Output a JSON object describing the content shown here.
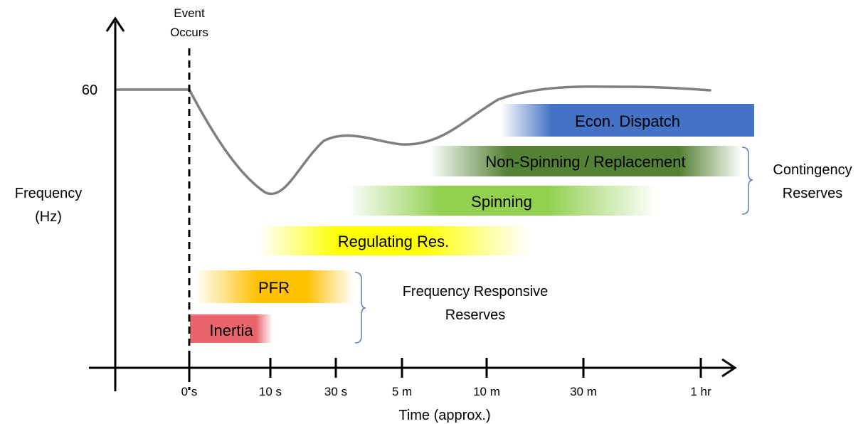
{
  "event_label": [
    "Event",
    "Occurs"
  ],
  "y_axis": {
    "label": [
      "Frequency",
      "(Hz)"
    ],
    "tick_value": "60"
  },
  "x_axis": {
    "label": "Time (approx.)",
    "ticks": [
      "0 s",
      "10 s",
      "30 s",
      "5 m",
      "10 m",
      "30 m",
      "1 hr"
    ]
  },
  "bands": [
    {
      "id": "econ-dispatch",
      "label": "Econ. Dispatch",
      "color": "#4472C4"
    },
    {
      "id": "non-spinning",
      "label": "Non-Spinning / Replacement",
      "color": "#548235"
    },
    {
      "id": "spinning",
      "label": "Spinning",
      "color": "#92D050"
    },
    {
      "id": "regulating",
      "label": "Regulating Res.",
      "color": "#FFFF00"
    },
    {
      "id": "pfr",
      "label": "PFR",
      "color": "#FFC000"
    },
    {
      "id": "inertia",
      "label": "Inertia",
      "color": "#E8666B"
    }
  ],
  "groups": {
    "contingency": [
      "Contingency",
      "Reserves"
    ],
    "frequency_responsive": [
      "Frequency Responsive",
      "Reserves"
    ]
  },
  "curve_color": "#7F7F7F"
}
